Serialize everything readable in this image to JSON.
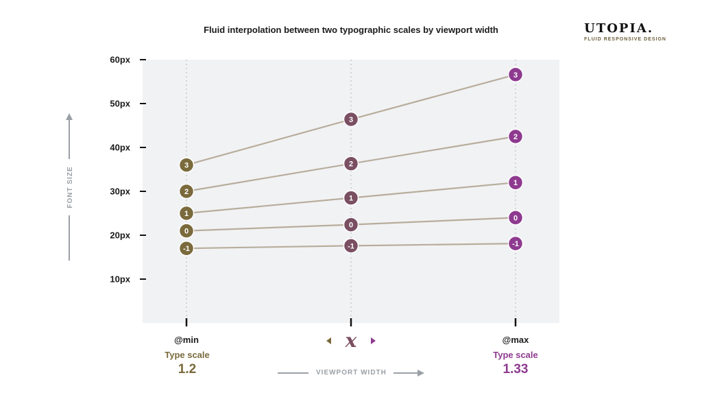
{
  "title": "Fluid interpolation between two typographic scales by viewport width",
  "brand": {
    "name": "UTOPIA.",
    "tagline": "FLUID RESPONSIVE DESIGN"
  },
  "colors": {
    "min": "#7a6a3c",
    "mid": "#7a4f62",
    "max": "#8e3a8f",
    "line": "#b8ad9c",
    "plot_bg": "#f1f2f4",
    "gridline": "#c9c9c9",
    "axis_caption": "#9aa0a6"
  },
  "breakpoints": {
    "min": {
      "label": "@min",
      "scale_label": "Type scale",
      "scale_value": "1.2"
    },
    "mid": {
      "symbol": "x"
    },
    "max": {
      "label": "@max",
      "scale_label": "Type scale",
      "scale_value": "1.33"
    }
  },
  "axis": {
    "x_caption": "VIEWPORT WIDTH",
    "y_caption": "FONT SIZE"
  },
  "chart_data": {
    "type": "line",
    "categories": [
      "@min",
      "x",
      "@max"
    ],
    "y_unit": "px",
    "yticks": [
      10,
      20,
      30,
      40,
      50,
      60
    ],
    "ytick_labels": [
      "10px",
      "20px",
      "30px",
      "40px",
      "50px",
      "60px"
    ],
    "ylim": [
      0,
      60
    ],
    "grid": "vertical dotted at each breakpoint",
    "series": [
      {
        "step": "-1",
        "values": [
          17,
          17.6,
          18.1
        ]
      },
      {
        "step": "0",
        "values": [
          21,
          22.4,
          24
        ]
      },
      {
        "step": "1",
        "values": [
          25,
          28.5,
          32
        ]
      },
      {
        "step": "2",
        "values": [
          30,
          36.3,
          42.5
        ]
      },
      {
        "step": "3",
        "values": [
          36,
          46.4,
          56.6
        ]
      }
    ]
  }
}
